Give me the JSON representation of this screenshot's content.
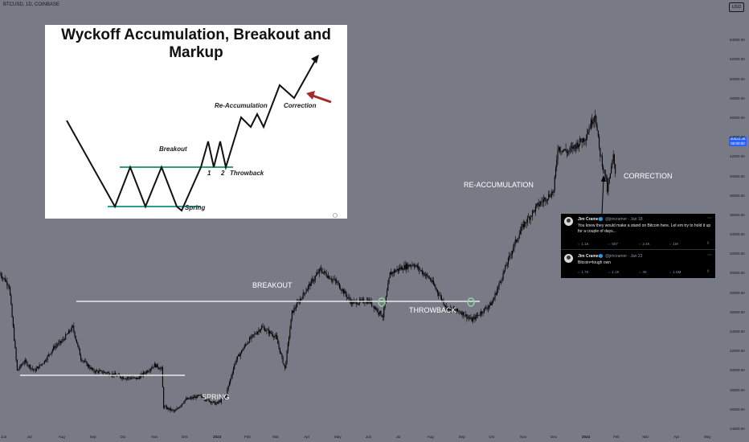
{
  "ticker": "BTCUSD, 1D, COINBASE",
  "currency": "USD",
  "price_tag": {
    "line1": "40522.38",
    "line2": "00:00:00"
  },
  "annotations": {
    "breakout": "BREAKOUT",
    "throwback": "THROWBACK",
    "spring": "SPRING",
    "reaccumulation": "RE-ACCUMULATION",
    "correction": "CORRECTION"
  },
  "wyckoff": {
    "title": "Wyckoff Accumulation, Breakout and Markup",
    "breakout": "Breakout",
    "reaccumulation": "Re-Accumulation",
    "correction": "Correction",
    "spring": "Spring",
    "throwback": "Throwback",
    "one": "1",
    "two": "2"
  },
  "tweets": [
    {
      "name": "Jim Cramer",
      "handle": "@jimcramer · Jan 18",
      "text": "You knew they would make a stand on Bitcoin here. Let em try to hold it up for a couple of days...",
      "stats": [
        "1.1K",
        "507",
        "2.4K",
        "1M"
      ]
    },
    {
      "name": "Jim Cramer",
      "handle": "@jimcramer · Jan 22",
      "text": "Bitcoin=tough own",
      "stats": [
        "1.7K",
        "1.1K",
        "4K",
        "1.5M"
      ]
    }
  ],
  "colors": {
    "background": "#787b86",
    "candles": "#000000",
    "annotation_lines": "#ffffff",
    "wyckoff_levels": "#2a9d8f",
    "wyckoff_arrow": "#a52a2a",
    "price_tag": "#2962ff"
  },
  "chart_data": {
    "type": "candlestick",
    "x_unit": "date",
    "y_unit": "USD",
    "y_axis_side": "right",
    "ylim": [
      14000,
      56000
    ],
    "y_ticks": [
      14000,
      16000,
      18000,
      20000,
      22000,
      24000,
      26000,
      28000,
      30000,
      32000,
      34000,
      36000,
      38000,
      40000,
      42000,
      44000,
      46000,
      48000,
      50000,
      52000,
      54000
    ],
    "x_ticks": [
      "Jun",
      "Jul",
      "Aug",
      "Sep",
      "Oct",
      "Nov",
      "Dec",
      "2023",
      "Feb",
      "Mar",
      "Apr",
      "May",
      "Jun",
      "Jul",
      "Aug",
      "Sep",
      "Oct",
      "Nov",
      "Dec",
      "2024",
      "Feb",
      "Mar",
      "Apr",
      "May"
    ],
    "last_price": 40522.38,
    "price_path": [
      [
        "2022-06-01",
        30000
      ],
      [
        "2022-06-10",
        28800
      ],
      [
        "2022-06-18",
        20000
      ],
      [
        "2022-06-25",
        21000
      ],
      [
        "2022-07-05",
        20000
      ],
      [
        "2022-07-15",
        21000
      ],
      [
        "2022-07-25",
        22500
      ],
      [
        "2022-08-01",
        23000
      ],
      [
        "2022-08-12",
        24500
      ],
      [
        "2022-08-20",
        21300
      ],
      [
        "2022-09-01",
        20000
      ],
      [
        "2022-09-15",
        19800
      ],
      [
        "2022-10-01",
        19300
      ],
      [
        "2022-10-15",
        19200
      ],
      [
        "2022-11-01",
        20600
      ],
      [
        "2022-11-08",
        20200
      ],
      [
        "2022-11-10",
        16300
      ],
      [
        "2022-11-21",
        15800
      ],
      [
        "2022-12-01",
        17000
      ],
      [
        "2022-12-15",
        17400
      ],
      [
        "2023-01-01",
        16600
      ],
      [
        "2023-01-10",
        17300
      ],
      [
        "2023-01-20",
        21000
      ],
      [
        "2023-02-01",
        23000
      ],
      [
        "2023-02-15",
        24500
      ],
      [
        "2023-03-01",
        23500
      ],
      [
        "2023-03-10",
        20200
      ],
      [
        "2023-03-17",
        26000
      ],
      [
        "2023-04-01",
        28500
      ],
      [
        "2023-04-14",
        30400
      ],
      [
        "2023-05-01",
        29000
      ],
      [
        "2023-05-15",
        27000
      ],
      [
        "2023-06-01",
        27200
      ],
      [
        "2023-06-15",
        25600
      ],
      [
        "2023-06-22",
        30000
      ],
      [
        "2023-07-01",
        30500
      ],
      [
        "2023-07-15",
        31000
      ],
      [
        "2023-08-01",
        29400
      ],
      [
        "2023-08-17",
        26500
      ],
      [
        "2023-09-01",
        26000
      ],
      [
        "2023-09-11",
        25200
      ],
      [
        "2023-10-01",
        27000
      ],
      [
        "2023-10-23",
        33000
      ],
      [
        "2023-11-01",
        35000
      ],
      [
        "2023-11-15",
        37000
      ],
      [
        "2023-12-01",
        38500
      ],
      [
        "2023-12-05",
        43000
      ],
      [
        "2023-12-15",
        42500
      ],
      [
        "2024-01-01",
        44000
      ],
      [
        "2024-01-11",
        46500
      ],
      [
        "2024-01-15",
        42800
      ],
      [
        "2024-01-22",
        39500
      ],
      [
        "2024-01-23",
        38500
      ],
      [
        "2024-01-29",
        42000
      ],
      [
        "2024-01-31",
        40522
      ]
    ]
  }
}
